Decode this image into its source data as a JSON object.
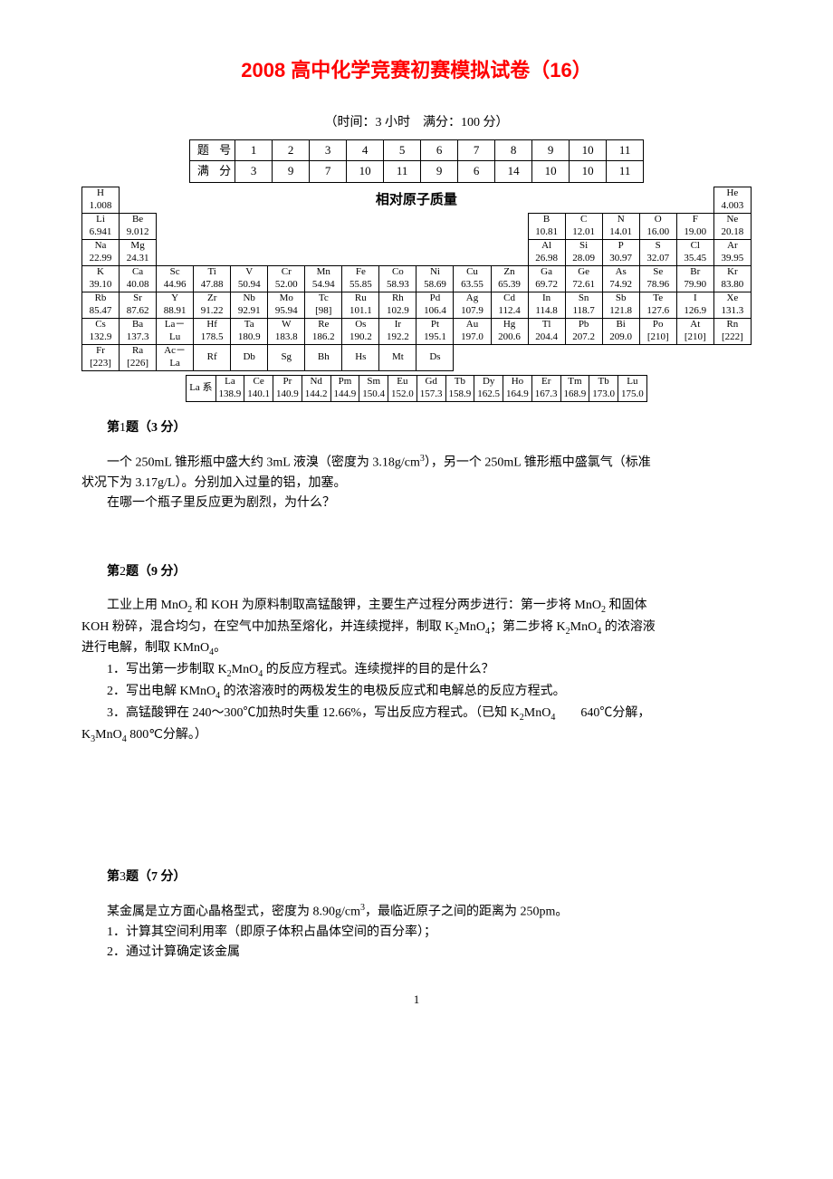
{
  "title": "2008 高中化学竞赛初赛模拟试卷（16）",
  "subtitle": "（时间：3 小时　满分：100 分）",
  "score": {
    "label_num": "题 号",
    "label_full": "满 分",
    "nums": [
      "1",
      "2",
      "3",
      "4",
      "5",
      "6",
      "7",
      "8",
      "9",
      "10",
      "11"
    ],
    "fulls": [
      "3",
      "9",
      "7",
      "10",
      "11",
      "9",
      "6",
      "14",
      "10",
      "10",
      "11"
    ]
  },
  "mass_title": "相对原子质量",
  "pt": {
    "row1": {
      "H": "1.008",
      "He": "4.003"
    },
    "row2": {
      "Li": "6.941",
      "Be": "9.012",
      "B": "10.81",
      "C": "12.01",
      "N": "14.01",
      "O": "16.00",
      "F": "19.00",
      "Ne": "20.18"
    },
    "row3": {
      "Na": "22.99",
      "Mg": "24.31",
      "Al": "26.98",
      "Si": "28.09",
      "P": "30.97",
      "S": "32.07",
      "Cl": "35.45",
      "Ar": "39.95"
    },
    "row4": {
      "K": "39.10",
      "Ca": "40.08",
      "Sc": "44.96",
      "Ti": "47.88",
      "V": "50.94",
      "Cr": "52.00",
      "Mn": "54.94",
      "Fe": "55.85",
      "Co": "58.93",
      "Ni": "58.69",
      "Cu": "63.55",
      "Zn": "65.39",
      "Ga": "69.72",
      "Ge": "72.61",
      "As": "74.92",
      "Se": "78.96",
      "Br": "79.90",
      "Kr": "83.80"
    },
    "row5": {
      "Rb": "85.47",
      "Sr": "87.62",
      "Y": "88.91",
      "Zr": "91.22",
      "Nb": "92.91",
      "Mo": "95.94",
      "Tc": "[98]",
      "Ru": "101.1",
      "Rh": "102.9",
      "Pd": "106.4",
      "Ag": "107.9",
      "Cd": "112.4",
      "In": "114.8",
      "Sn": "118.7",
      "Sb": "121.8",
      "Te": "127.6",
      "I": "126.9",
      "Xe": "131.3"
    },
    "row6": {
      "Cs": "132.9",
      "Ba": "137.3",
      "LaLu": "La－\nLu",
      "Hf": "178.5",
      "Ta": "180.9",
      "W": "183.8",
      "Re": "186.2",
      "Os": "190.2",
      "Ir": "192.2",
      "Pt": "195.1",
      "Au": "197.0",
      "Hg": "200.6",
      "Tl": "204.4",
      "Pb": "207.2",
      "Bi": "209.0",
      "Po": "[210]",
      "At": "[210]",
      "Rn": "[222]"
    },
    "row7": {
      "Fr": "[223]",
      "Ra": "[226]",
      "AcLa": "Ac－\nLa",
      "Rf": "Rf",
      "Db": "Db",
      "Sg": "Sg",
      "Bh": "Bh",
      "Hs": "Hs",
      "Mt": "Mt",
      "Ds": "Ds"
    }
  },
  "la_label": "La 系",
  "la": {
    "La": "138.9",
    "Ce": "140.1",
    "Pr": "140.9",
    "Nd": "144.2",
    "Pm": "144.9",
    "Sm": "150.4",
    "Eu": "152.0",
    "Gd": "157.3",
    "Tb": "158.9",
    "Dy": "162.5",
    "Ho": "164.9",
    "Er": "167.3",
    "Tm": "168.9",
    "Tb2": "173.0",
    "Lu": "175.0"
  },
  "q1": {
    "head": "第",
    "num": "1",
    "tail": "题（3 分）",
    "p1a": "一个 250mL 锥形瓶中盛大约 3mL 液溴（密度为 3.18g/cm",
    "p1b": "），另一个 250mL 锥形瓶中盛氯气（标准",
    "p2": "状况下为 3.17g/L）。分别加入过量的铝，加塞。",
    "p3": "在哪一个瓶子里反应更为剧烈，为什么？"
  },
  "q2": {
    "num": "2",
    "tail": "题（9 分）",
    "p1a": "工业上用 MnO",
    "p1b": " 和 KOH 为原料制取高锰酸钾，主要生产过程分两步进行：第一步将 MnO",
    "p1c": " 和固体",
    "p2a": "KOH 粉碎，混合均匀，在空气中加热至熔化，并连续搅拌，制取 K",
    "p2b": "MnO",
    "p2c": "；第二步将 K",
    "p2d": "MnO",
    "p2e": " 的浓溶液",
    "p3a": "进行电解，制取 KMnO",
    "p3b": "。",
    "l1a": "1．写出第一步制取 K",
    "l1b": "MnO",
    "l1c": " 的反应方程式。连续搅拌的目的是什么？",
    "l2a": "2．写出电解 KMnO",
    "l2b": " 的浓溶液时的两极发生的电极反应式和电解总的反应方程式。",
    "l3a": "3．高锰酸钾在 240～300℃加热时失重 12.66%，写出反应方程式。（已知 K",
    "l3b": "MnO",
    "l3c": "　　640℃分解，",
    "l4a": "K",
    "l4b": "MnO",
    "l4c": " 800℃分解。）"
  },
  "q3": {
    "num": "3",
    "tail": "题（7 分）",
    "p1a": "某金属是立方面心晶格型式，密度为 8.90g/cm",
    "p1b": "，最临近原子之间的距离为 250pm。",
    "l1": "1．计算其空间利用率（即原子体积占晶体空间的百分率）；",
    "l2": "2．通过计算确定该金属"
  },
  "page_num": "1"
}
